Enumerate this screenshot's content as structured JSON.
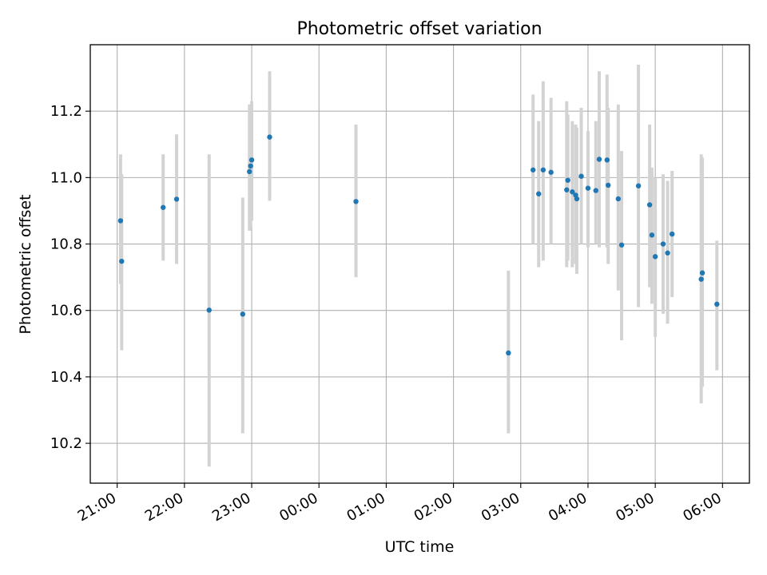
{
  "chart_data": {
    "type": "scatter",
    "title": "Photometric offset variation",
    "xlabel": "UTC time",
    "ylabel": "Photometric offset",
    "grid": true,
    "legend": "none",
    "xlim": [
      "2000-01-01T20:36",
      "2000-01-02T06:24"
    ],
    "ylim": [
      10.08,
      11.4
    ],
    "x_ticks": [
      "21:00",
      "22:00",
      "23:00",
      "00:00",
      "01:00",
      "02:00",
      "03:00",
      "04:00",
      "05:00",
      "06:00"
    ],
    "y_ticks": [
      "10.2",
      "10.4",
      "10.6",
      "10.8",
      "11.0",
      "11.2"
    ],
    "colors": {
      "points": "#1f77b4",
      "errorbars": "#d3d3d3",
      "grid": "#b0b0b0"
    },
    "points": [
      {
        "x": "2000-01-01T21:03",
        "y": 10.87,
        "ylo": 10.68,
        "yhi": 11.07
      },
      {
        "x": "2000-01-01T21:04",
        "y": 10.748,
        "ylo": 10.48,
        "yhi": 11.01
      },
      {
        "x": "2000-01-01T21:41",
        "y": 10.91,
        "ylo": 10.75,
        "yhi": 11.07
      },
      {
        "x": "2000-01-01T21:53",
        "y": 10.935,
        "ylo": 10.74,
        "yhi": 11.13
      },
      {
        "x": "2000-01-01T22:22",
        "y": 10.601,
        "ylo": 10.13,
        "yhi": 11.07
      },
      {
        "x": "2000-01-01T22:52",
        "y": 10.589,
        "ylo": 10.23,
        "yhi": 10.94
      },
      {
        "x": "2000-01-01T22:58",
        "y": 11.018,
        "ylo": 10.84,
        "yhi": 11.22
      },
      {
        "x": "2000-01-01T22:59",
        "y": 11.035,
        "ylo": 10.85,
        "yhi": 11.22
      },
      {
        "x": "2000-01-01T23:00",
        "y": 11.053,
        "ylo": 10.87,
        "yhi": 11.23
      },
      {
        "x": "2000-01-01T23:16",
        "y": 11.122,
        "ylo": 10.93,
        "yhi": 11.32
      },
      {
        "x": "2000-01-02T00:33",
        "y": 10.928,
        "ylo": 10.7,
        "yhi": 11.16
      },
      {
        "x": "2000-01-02T02:49",
        "y": 10.472,
        "ylo": 10.23,
        "yhi": 10.72
      },
      {
        "x": "2000-01-02T03:11",
        "y": 11.023,
        "ylo": 10.8,
        "yhi": 11.25
      },
      {
        "x": "2000-01-02T03:16",
        "y": 10.951,
        "ylo": 10.73,
        "yhi": 11.17
      },
      {
        "x": "2000-01-02T03:20",
        "y": 11.023,
        "ylo": 10.75,
        "yhi": 11.29
      },
      {
        "x": "2000-01-02T03:27",
        "y": 11.016,
        "ylo": 10.8,
        "yhi": 11.24
      },
      {
        "x": "2000-01-02T03:41",
        "y": 10.963,
        "ylo": 10.73,
        "yhi": 11.23
      },
      {
        "x": "2000-01-02T03:42",
        "y": 10.992,
        "ylo": 10.75,
        "yhi": 11.19
      },
      {
        "x": "2000-01-02T03:46",
        "y": 10.957,
        "ylo": 10.73,
        "yhi": 11.17
      },
      {
        "x": "2000-01-02T03:49",
        "y": 10.947,
        "ylo": 10.74,
        "yhi": 11.16
      },
      {
        "x": "2000-01-02T03:50",
        "y": 10.936,
        "ylo": 10.71,
        "yhi": 11.15
      },
      {
        "x": "2000-01-02T03:54",
        "y": 11.004,
        "ylo": 10.8,
        "yhi": 11.21
      },
      {
        "x": "2000-01-02T04:00",
        "y": 10.968,
        "ylo": 10.79,
        "yhi": 11.14
      },
      {
        "x": "2000-01-02T04:07",
        "y": 10.961,
        "ylo": 10.8,
        "yhi": 11.17
      },
      {
        "x": "2000-01-02T04:10",
        "y": 11.055,
        "ylo": 10.79,
        "yhi": 11.32
      },
      {
        "x": "2000-01-02T04:17",
        "y": 11.053,
        "ylo": 10.79,
        "yhi": 11.31
      },
      {
        "x": "2000-01-02T04:18",
        "y": 10.977,
        "ylo": 10.74,
        "yhi": 11.21
      },
      {
        "x": "2000-01-02T04:27",
        "y": 10.936,
        "ylo": 10.66,
        "yhi": 11.22
      },
      {
        "x": "2000-01-02T04:30",
        "y": 10.797,
        "ylo": 10.51,
        "yhi": 11.08
      },
      {
        "x": "2000-01-02T04:45",
        "y": 10.975,
        "ylo": 10.61,
        "yhi": 11.34
      },
      {
        "x": "2000-01-02T04:55",
        "y": 10.918,
        "ylo": 10.67,
        "yhi": 11.16
      },
      {
        "x": "2000-01-02T04:57",
        "y": 10.827,
        "ylo": 10.62,
        "yhi": 11.03
      },
      {
        "x": "2000-01-02T05:00",
        "y": 10.762,
        "ylo": 10.52,
        "yhi": 11.0
      },
      {
        "x": "2000-01-02T05:07",
        "y": 10.8,
        "ylo": 10.59,
        "yhi": 11.01
      },
      {
        "x": "2000-01-02T05:11",
        "y": 10.773,
        "ylo": 10.56,
        "yhi": 10.99
      },
      {
        "x": "2000-01-02T05:15",
        "y": 10.83,
        "ylo": 10.64,
        "yhi": 11.02
      },
      {
        "x": "2000-01-02T05:41",
        "y": 10.694,
        "ylo": 10.32,
        "yhi": 11.07
      },
      {
        "x": "2000-01-02T05:42",
        "y": 10.713,
        "ylo": 10.37,
        "yhi": 11.06
      },
      {
        "x": "2000-01-02T05:55",
        "y": 10.619,
        "ylo": 10.42,
        "yhi": 10.81
      }
    ]
  }
}
